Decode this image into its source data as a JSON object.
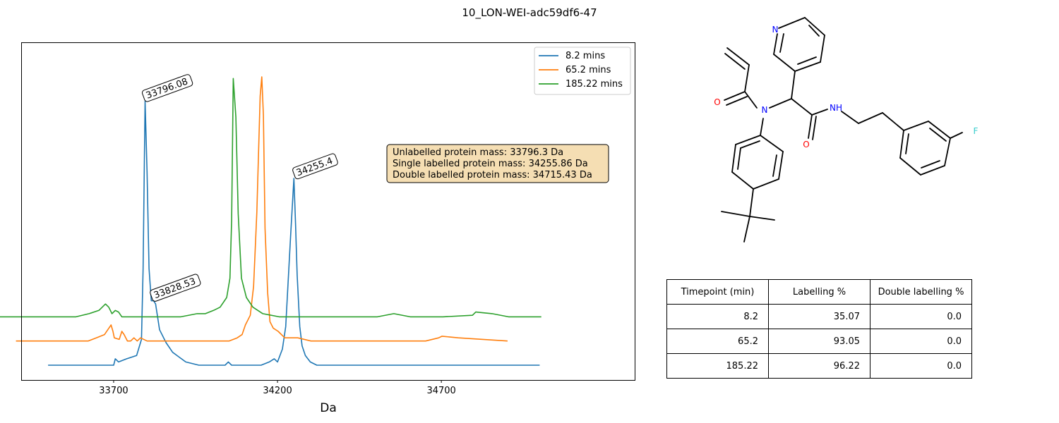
{
  "figure_title": "10_LON-WEI-adc59df6-47",
  "chart_data": {
    "type": "line",
    "title": "",
    "xlabel": "Da",
    "ylabel": "",
    "xlim": [
      33420,
      35290
    ],
    "ylim": [
      0,
      1.0
    ],
    "xticks": [
      33700,
      34200,
      34700
    ],
    "grid": false,
    "legend_position": "top-right",
    "series": [
      {
        "name": "8.2 mins",
        "color": "#1f77b4",
        "x_offset": 0,
        "baseline": 0,
        "x": [
          33500,
          33700,
          33705,
          33715,
          33740,
          33770,
          33785,
          33790,
          33796,
          33802,
          33808,
          33815,
          33822,
          33828,
          33840,
          33860,
          33880,
          33920,
          33960,
          34000,
          34040,
          34050,
          34060,
          34100,
          34150,
          34175,
          34190,
          34200,
          34215,
          34225,
          34240,
          34250,
          34255,
          34260,
          34268,
          34275,
          34285,
          34300,
          34320,
          34360,
          34450,
          34600,
          34750,
          34900,
          35000
        ],
        "y": [
          0,
          0,
          0.02,
          0.01,
          0.02,
          0.03,
          0.08,
          0.3,
          0.82,
          0.6,
          0.3,
          0.2,
          0.2,
          0.19,
          0.11,
          0.07,
          0.04,
          0.01,
          0.0,
          0.0,
          0.0,
          0.01,
          0.0,
          0.0,
          0.0,
          0.01,
          0.02,
          0.01,
          0.05,
          0.12,
          0.4,
          0.58,
          0.44,
          0.28,
          0.12,
          0.06,
          0.03,
          0.01,
          0.0,
          0.0,
          0.0,
          0.0,
          0.0,
          0.0,
          0.0
        ]
      },
      {
        "name": "65.2 mins",
        "color": "#ff7f0e",
        "x_offset": -98,
        "baseline": 0.075,
        "x": [
          33500,
          33700,
          33720,
          33745,
          33770,
          33790,
          33796,
          33800,
          33815,
          33823,
          33830,
          33840,
          33850,
          33860,
          33870,
          33880,
          33900,
          33920,
          33960,
          34000,
          34050,
          34100,
          34150,
          34175,
          34190,
          34200,
          34215,
          34225,
          34235,
          34245,
          34250,
          34255,
          34260,
          34268,
          34275,
          34285,
          34300,
          34320,
          34360,
          34400,
          34450,
          34600,
          34750,
          34790,
          34800,
          34850,
          35000
        ],
        "y": [
          0,
          0,
          0.0,
          0.01,
          0.02,
          0.05,
          0.03,
          0.01,
          0.005,
          0.03,
          0.02,
          0.0,
          0.0,
          0.01,
          0.0,
          0.01,
          0.0,
          0.0,
          0.0,
          0.0,
          0.0,
          0.0,
          0.0,
          0.01,
          0.02,
          0.05,
          0.08,
          0.17,
          0.4,
          0.76,
          0.82,
          0.7,
          0.35,
          0.15,
          0.06,
          0.04,
          0.03,
          0.01,
          0.01,
          0.0,
          0.0,
          0.0,
          0.0,
          0.01,
          0.015,
          0.01,
          0.0
        ]
      },
      {
        "name": "185.22 mins",
        "color": "#2ca02c",
        "x_offset": -195,
        "baseline": 0.15,
        "x": [
          33500,
          33700,
          33780,
          33820,
          33850,
          33870,
          33880,
          33890,
          33900,
          33910,
          33920,
          33930,
          33950,
          34000,
          34050,
          34100,
          34150,
          34175,
          34200,
          34220,
          34240,
          34250,
          34255,
          34260,
          34268,
          34275,
          34285,
          34300,
          34320,
          34350,
          34400,
          34500,
          34600,
          34700,
          34750,
          34800,
          34900,
          34990,
          35000,
          35050,
          35100,
          35200
        ],
        "y": [
          0,
          0,
          0.0,
          0.01,
          0.02,
          0.04,
          0.03,
          0.01,
          0.02,
          0.015,
          0.0,
          0.0,
          0.0,
          0.0,
          0.0,
          0.0,
          0.01,
          0.01,
          0.02,
          0.03,
          0.06,
          0.12,
          0.3,
          0.74,
          0.62,
          0.32,
          0.12,
          0.06,
          0.03,
          0.01,
          0.0,
          0.0,
          0.0,
          0.0,
          0.01,
          0.0,
          0.0,
          0.005,
          0.015,
          0.01,
          0.0,
          0.0
        ]
      }
    ],
    "annotations": [
      {
        "text": "33796.08",
        "x": 33796,
        "y": 0.82
      },
      {
        "text": "33828.53",
        "x": 33820,
        "y": 0.2
      },
      {
        "text": "34255.4",
        "x": 34255,
        "y": 0.58
      }
    ],
    "info_box": [
      "Unlabelled protein mass: 33796.3 Da",
      "Single labelled protein mass: 34255.86 Da",
      "Double labelled protein mass: 34715.43 Da"
    ]
  },
  "molecule": {
    "atom_labels": [
      {
        "id": "N-pyridine",
        "text": "N",
        "color": "#0000ff"
      },
      {
        "id": "O-acryl",
        "text": "O",
        "color": "#ff0000"
      },
      {
        "id": "N-amide",
        "text": "N",
        "color": "#0000ff"
      },
      {
        "id": "NH",
        "text": "NH",
        "color": "#0000ff"
      },
      {
        "id": "O-amide",
        "text": "O",
        "color": "#ff0000"
      },
      {
        "id": "F",
        "text": "F",
        "color": "#33cccc"
      }
    ]
  },
  "table": {
    "headers": [
      "Timepoint (min)",
      "Labelling %",
      "Double labelling %"
    ],
    "rows": [
      [
        "8.2",
        "35.07",
        "0.0"
      ],
      [
        "65.2",
        "93.05",
        "0.0"
      ],
      [
        "185.22",
        "96.22",
        "0.0"
      ]
    ]
  }
}
